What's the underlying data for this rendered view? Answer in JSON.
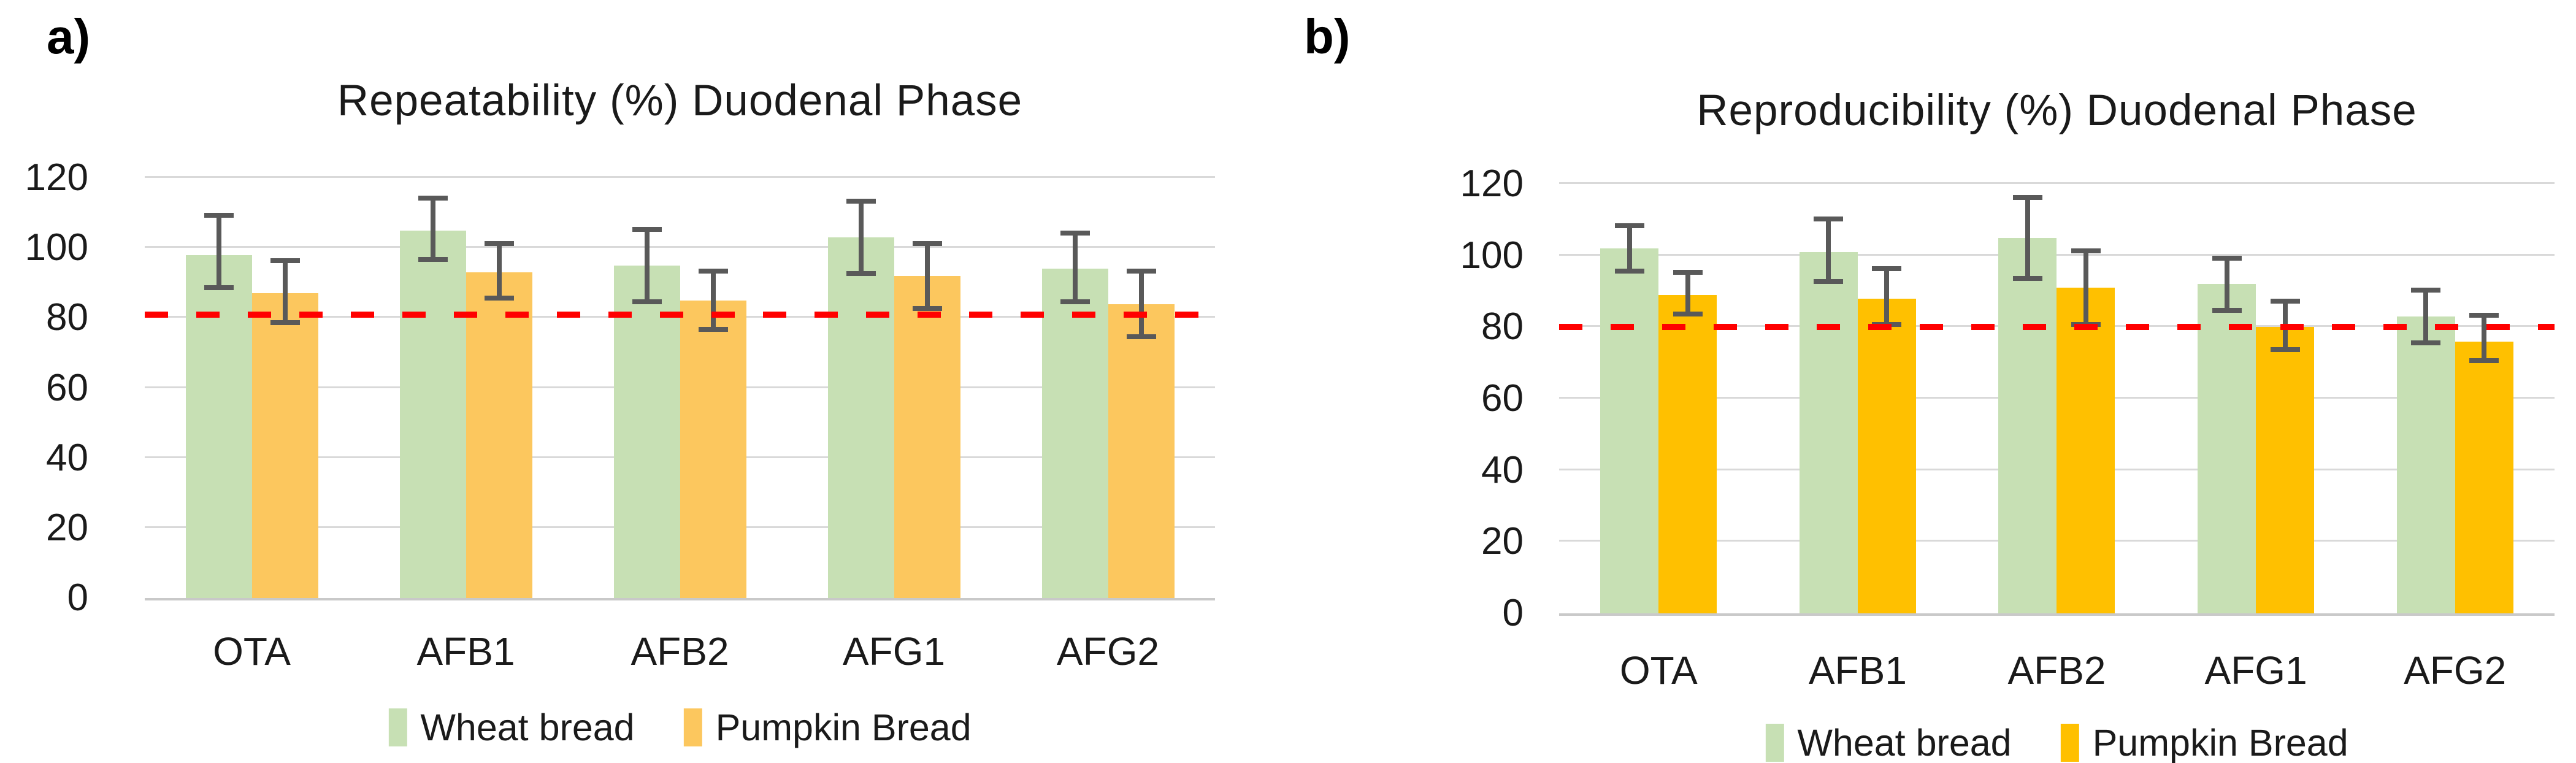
{
  "page": {
    "background": "#FFFFFF"
  },
  "chart_data": [
    {
      "type": "bar",
      "panel_label": "a)",
      "title": "Repeatability (%) Duodenal Phase",
      "categories": [
        "OTA",
        "AFB1",
        "AFB2",
        "AFG1",
        "AFG2"
      ],
      "series": [
        {
          "name": "Wheat bread",
          "color": "#C7E0B4",
          "values": [
            98,
            105,
            95,
            103,
            94
          ],
          "error_low": [
            88,
            96,
            84,
            92,
            84
          ],
          "error_high": [
            110,
            115,
            106,
            114,
            105
          ]
        },
        {
          "name": "Pumpkin Bread",
          "color": "#FCC75E",
          "values": [
            87,
            93,
            85,
            92,
            84
          ],
          "error_low": [
            78,
            85,
            76,
            82,
            74
          ],
          "error_high": [
            97,
            102,
            94,
            102,
            94
          ]
        }
      ],
      "ylim": [
        0,
        120
      ],
      "yticks": [
        0,
        20,
        40,
        60,
        80,
        100,
        120
      ],
      "xlabel": "",
      "ylabel": "",
      "grid": "horizontal",
      "gridline_color": "#D9D9D9",
      "axis_line_color": "#C9C9C9",
      "error_bar_color": "#595959",
      "legend_position": "bottom",
      "reference_line": {
        "value": 81,
        "color": "#FF0000",
        "style": "dashed"
      }
    },
    {
      "type": "bar",
      "panel_label": "b)",
      "title": "Reproducibility (%) Duodenal Phase",
      "categories": [
        "OTA",
        "AFB1",
        "AFB2",
        "AFG1",
        "AFG2"
      ],
      "series": [
        {
          "name": "Wheat bread",
          "color": "#C7E0B4",
          "values": [
            102,
            101,
            105,
            92,
            83
          ],
          "error_low": [
            95,
            92,
            93,
            84,
            75
          ],
          "error_high": [
            109,
            111,
            117,
            100,
            91
          ]
        },
        {
          "name": "Pumpkin Bread",
          "color": "#FFC000",
          "values": [
            89,
            88,
            91,
            80,
            76
          ],
          "error_low": [
            83,
            80,
            80,
            73,
            70
          ],
          "error_high": [
            96,
            97,
            102,
            88,
            84
          ]
        }
      ],
      "ylim": [
        0,
        120
      ],
      "yticks": [
        0,
        20,
        40,
        60,
        80,
        100,
        120
      ],
      "xlabel": "",
      "ylabel": "",
      "grid": "horizontal",
      "gridline_color": "#D9D9D9",
      "axis_line_color": "#C9C9C9",
      "error_bar_color": "#595959",
      "legend_position": "bottom",
      "reference_line": {
        "value": 80,
        "color": "#FF0000",
        "style": "dashed"
      }
    }
  ]
}
